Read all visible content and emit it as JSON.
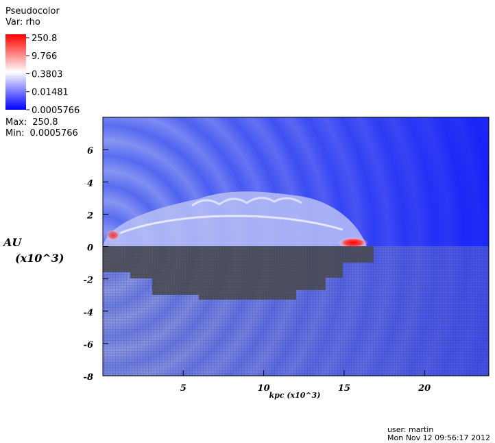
{
  "chart_data": {
    "type": "pseudocolor",
    "plot_name": "Pseudocolor",
    "variable": "Var: rho",
    "colorbar": {
      "scale": "log",
      "clim": [
        0.0005766,
        250.8
      ],
      "ticks": [
        250.8,
        9.766,
        0.3803,
        0.01481,
        0.0005766
      ]
    },
    "max_label": "Max:",
    "max": 250.8,
    "min_label": "Min:",
    "min": 0.0005766,
    "xlabel": "kpc  (x10^3)",
    "ylabel": [
      "AU",
      "(x10^3)"
    ],
    "xlim": [
      0,
      24
    ],
    "xticks": [
      5,
      10,
      15,
      20
    ],
    "ylim": [
      -8,
      8
    ],
    "yticks": [
      -8,
      -6,
      -4,
      -2,
      0,
      2,
      4,
      6
    ],
    "user": "user: martin",
    "date": "Mon Nov 12 09:56:17 2012"
  }
}
